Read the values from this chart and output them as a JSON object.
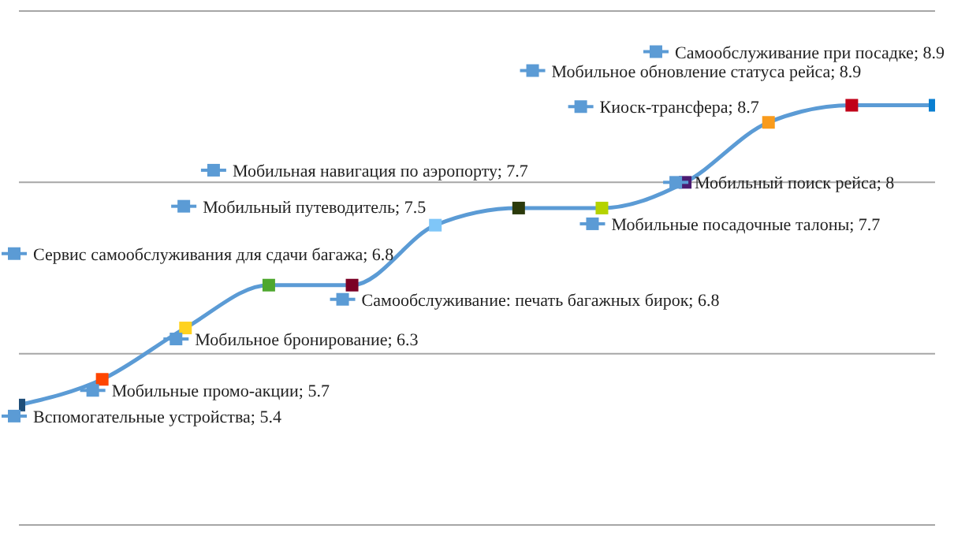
{
  "chart_data": {
    "type": "line",
    "categories": [
      null,
      null,
      null,
      null,
      null,
      null,
      null,
      null,
      null,
      null,
      null,
      null
    ],
    "values": [
      5.4,
      5.7,
      6.3,
      6.8,
      6.8,
      7.5,
      7.7,
      7.7,
      8,
      8.7,
      8.9,
      8.9
    ],
    "value_labels": [
      "Вспомогательные устройства; 5.4",
      "Мобильные промо-акции; 5.7",
      "Мобильное бронирование; 6.3",
      "Сервис самообслуживания для сдачи багажа; 6.8",
      "Самообслуживание: печать багажных бирок; 6.8",
      "Мобильный путеводитель; 7.5",
      "Мобильная навигация по аэропорту; 7.7",
      "Мобильные посадочные талоны; 7.7",
      "Мобильный поиск рейса; 8",
      "Киоск-трансфера; 8.7",
      "Мобильное обновление статуса рейса; 8.9",
      "Самообслуживание при посадке; 8.9"
    ],
    "color": "#5b9bd5",
    "colors": [
      "#1f4e79",
      "#ff4500",
      "#ffd21f",
      "#4ea72e",
      "#7b0026",
      "#7fc6f8",
      "#2b3a0b",
      "#b5d300",
      "#4b1c72",
      "#f99b1c",
      "#c00018",
      "#0a7fd1"
    ],
    "ylim": [
      4,
      10
    ],
    "yticks": [
      {
        "value": 4,
        "label": null
      },
      {
        "value": 6,
        "label": null
      },
      {
        "value": 8,
        "label": null
      },
      {
        "value": 10,
        "label": null
      }
    ],
    "grid": "y",
    "tick_labels": false,
    "marker": "square",
    "line_style": "solid"
  }
}
